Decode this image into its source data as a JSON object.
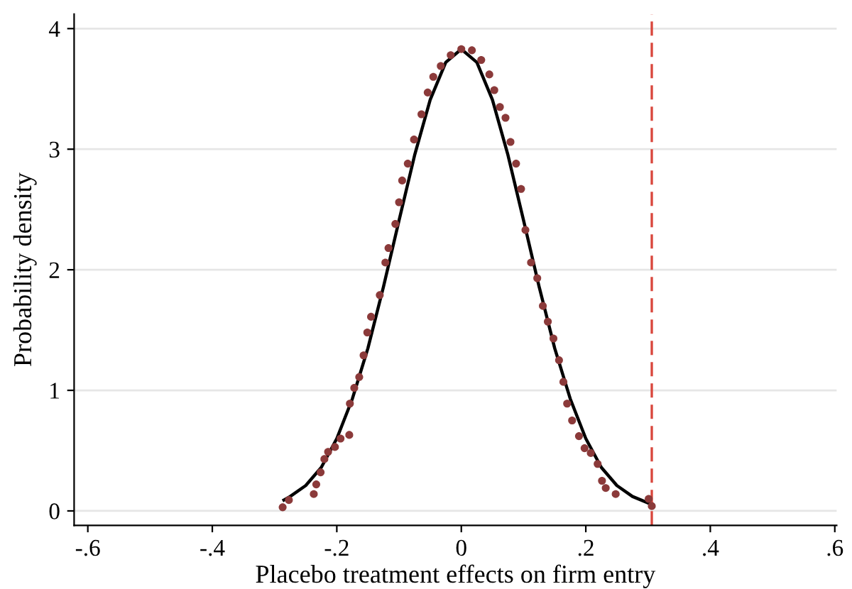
{
  "chart_data": {
    "type": "scatter",
    "xlabel": "Placebo treatment effects on firm entry",
    "ylabel": "Probability density",
    "xlim": [
      -0.622,
      0.603
    ],
    "ylim": [
      -0.12,
      4.12
    ],
    "xticks": [
      {
        "value": -0.6,
        "label": "-.6"
      },
      {
        "value": -0.4,
        "label": "-.4"
      },
      {
        "value": -0.2,
        "label": "-.2"
      },
      0,
      {
        "value": 0.2,
        "label": ".2"
      },
      {
        "value": 0.4,
        "label": ".4"
      },
      {
        "value": 0.6,
        "label": ".6"
      }
    ],
    "yticks": [
      0,
      1,
      2,
      3,
      4
    ],
    "grid": "y",
    "series": [
      {
        "type": "line",
        "color": "#000000",
        "line_style": "solid",
        "marker": "none",
        "x": [
          -0.285,
          -0.275,
          -0.25,
          -0.225,
          -0.2,
          -0.175,
          -0.15,
          -0.125,
          -0.1,
          -0.075,
          -0.05,
          -0.025,
          0,
          0.025,
          0.05,
          0.075,
          0.1,
          0.125,
          0.15,
          0.175,
          0.2,
          0.225,
          0.25,
          0.275,
          0.303
        ],
        "values": [
          0.09,
          0.12,
          0.21,
          0.36,
          0.6,
          0.93,
          1.35,
          1.86,
          2.41,
          2.95,
          3.41,
          3.72,
          3.83,
          3.72,
          3.41,
          2.95,
          2.41,
          1.86,
          1.35,
          0.93,
          0.6,
          0.36,
          0.21,
          0.12,
          0.06
        ]
      },
      {
        "color": "#8b3a3a",
        "marker": "circle",
        "x": [
          -0.287,
          -0.277,
          -0.237,
          -0.233,
          -0.226,
          -0.22,
          -0.214,
          -0.203,
          -0.194,
          -0.18,
          -0.179,
          -0.172,
          -0.164,
          -0.157,
          -0.151,
          -0.145,
          -0.131,
          -0.122,
          -0.117,
          -0.106,
          -0.1,
          -0.095,
          -0.086,
          -0.076,
          -0.064,
          -0.054,
          -0.045,
          -0.033,
          -0.017,
          0,
          0.017,
          0.032,
          0.045,
          0.053,
          0.062,
          0.071,
          0.079,
          0.088,
          0.096,
          0.103,
          0.112,
          0.122,
          0.131,
          0.139,
          0.148,
          0.157,
          0.164,
          0.17,
          0.178,
          0.189,
          0.198,
          0.208,
          0.219,
          0.226,
          0.232,
          0.248,
          0.301,
          0.306
        ],
        "values": [
          0.03,
          0.09,
          0.14,
          0.22,
          0.32,
          0.43,
          0.49,
          0.53,
          0.6,
          0.63,
          0.89,
          1.02,
          1.11,
          1.29,
          1.48,
          1.61,
          1.79,
          2.06,
          2.18,
          2.38,
          2.56,
          2.74,
          2.88,
          3.08,
          3.29,
          3.47,
          3.6,
          3.69,
          3.78,
          3.83,
          3.82,
          3.74,
          3.62,
          3.49,
          3.35,
          3.26,
          3.06,
          2.88,
          2.67,
          2.33,
          2.06,
          1.93,
          1.7,
          1.57,
          1.43,
          1.25,
          1.07,
          0.89,
          0.75,
          0.62,
          0.52,
          0.48,
          0.39,
          0.25,
          0.19,
          0.14,
          0.1,
          0.04
        ]
      }
    ],
    "ref_lines": [
      {
        "axis": "x",
        "value": 0.306,
        "color": "#d9463c",
        "line_style": "dashed"
      }
    ]
  }
}
